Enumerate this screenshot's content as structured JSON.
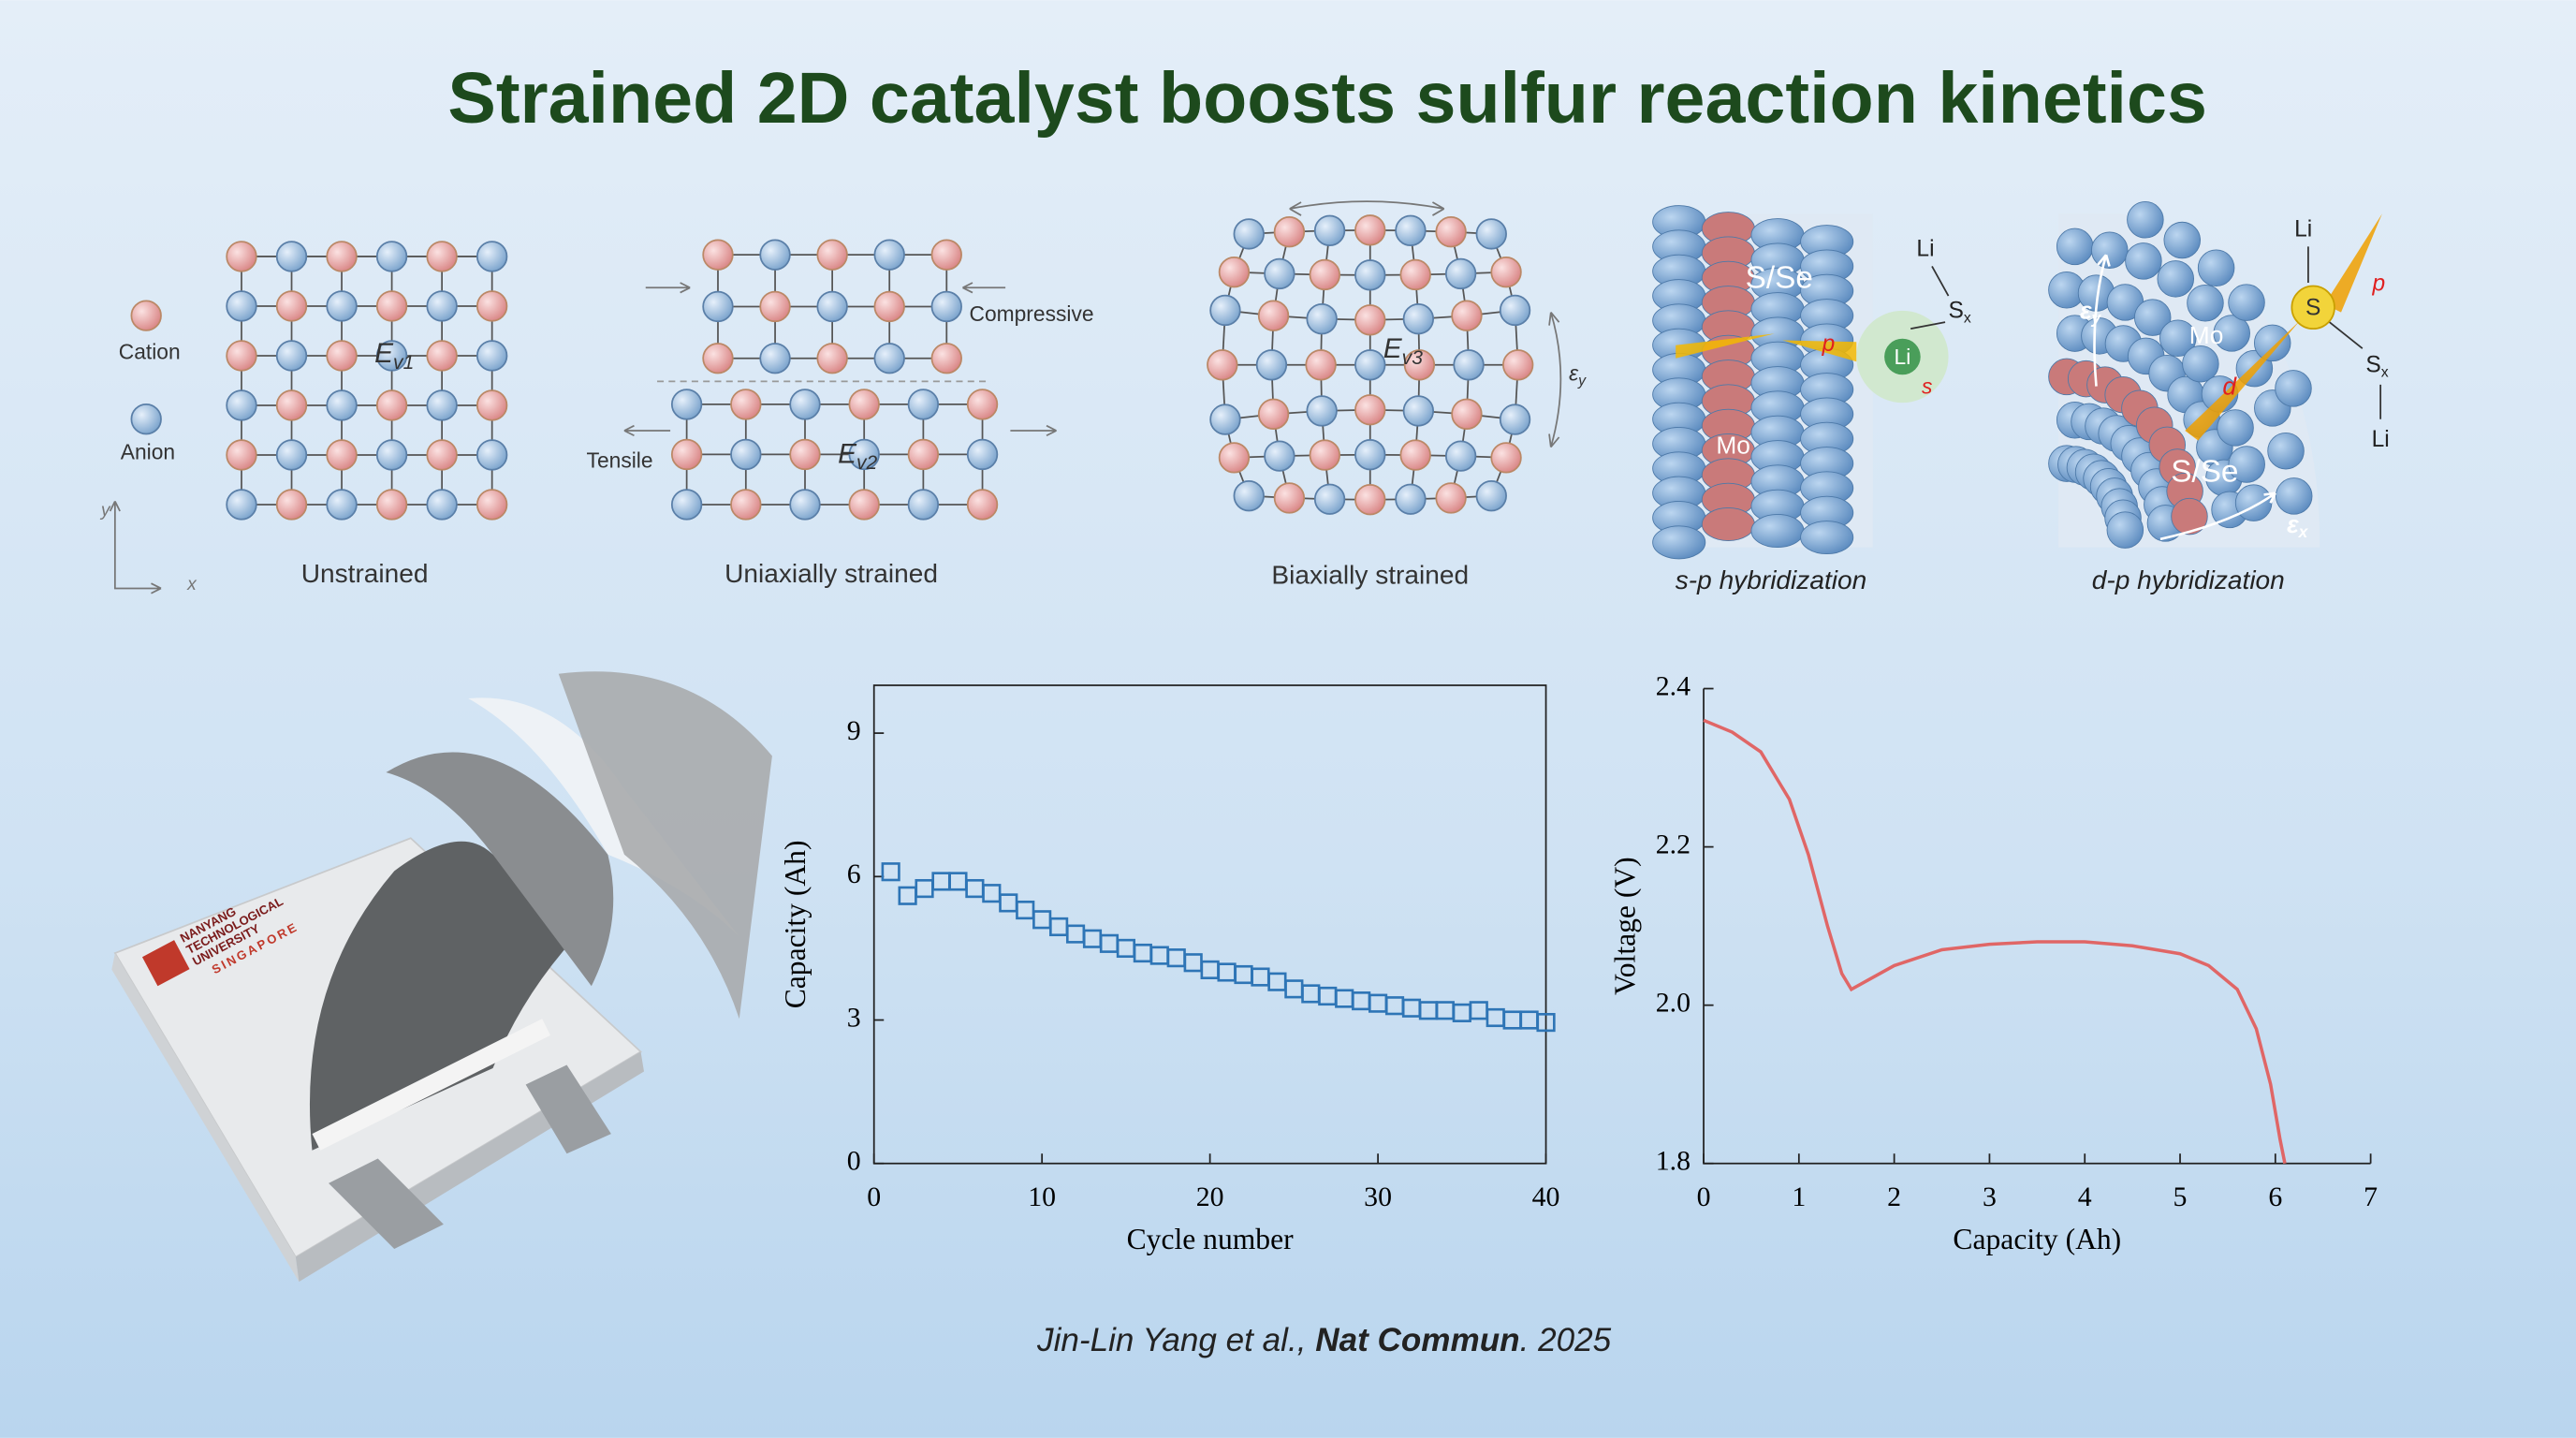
{
  "title": "Strained 2D catalyst boosts sulfur reaction kinetics",
  "panels": {
    "unstrained": {
      "cation": "Cation",
      "anion": "Anion",
      "energy": {
        "symbol": "E",
        "subscript": "v1"
      },
      "axis_y": "y",
      "axis_x": "x",
      "caption": "Unstrained"
    },
    "uniaxial": {
      "compressive": "Compressive",
      "tensile": "Tensile",
      "energy": {
        "symbol": "E",
        "subscript": "v2"
      },
      "caption": "Uniaxially strained"
    },
    "biaxial": {
      "energy": {
        "symbol": "E",
        "subscript": "v3"
      },
      "strain": {
        "symbol": "ε",
        "subscript": "y"
      },
      "caption": "Biaxially strained"
    },
    "sp": {
      "layer": "S/Se",
      "metal": "Mo",
      "li_top": "Li",
      "sx": {
        "symbol": "S",
        "subscript": "x"
      },
      "li_atom": "Li",
      "orbital_p": "p",
      "orbital_s": "s",
      "caption": "s-p hybridization"
    },
    "dp": {
      "metal": "Mo",
      "orbital_d": "d",
      "layer": "S/Se",
      "s_atom": "S",
      "orbital_p": "p",
      "li_top": "Li",
      "sx": {
        "symbol": "S",
        "subscript": "x"
      },
      "li_bottom": "Li",
      "strain_y": {
        "symbol": "ε",
        "subscript": "y"
      },
      "strain_x": {
        "symbol": "ε",
        "subscript": "x"
      },
      "caption": "d-p hybridization"
    }
  },
  "cell_logo": {
    "line1": "NANYANG",
    "line2": "TECHNOLOGICAL",
    "line3": "UNIVERSITY",
    "line4": "SINGAPORE"
  },
  "citation": {
    "authors": "Jin-Lin Yang et al., ",
    "journal": "Nat Commun",
    "year": ". 2025"
  },
  "chart_data": [
    {
      "type": "scatter",
      "xlabel": "Cycle number",
      "ylabel": "Capacity (Ah)",
      "color": "#2e75b6",
      "x": [
        1,
        2,
        3,
        4,
        5,
        6,
        7,
        8,
        9,
        10,
        11,
        12,
        13,
        14,
        15,
        16,
        17,
        18,
        19,
        20,
        21,
        22,
        23,
        24,
        25,
        26,
        27,
        28,
        29,
        30,
        31,
        32,
        33,
        34,
        35,
        36,
        37,
        38,
        39,
        40
      ],
      "values": [
        6.1,
        5.6,
        5.75,
        5.9,
        5.9,
        5.75,
        5.65,
        5.45,
        5.3,
        5.1,
        4.95,
        4.8,
        4.7,
        4.6,
        4.5,
        4.4,
        4.35,
        4.3,
        4.2,
        4.05,
        4.0,
        3.95,
        3.9,
        3.8,
        3.65,
        3.55,
        3.5,
        3.45,
        3.4,
        3.35,
        3.3,
        3.25,
        3.2,
        3.2,
        3.15,
        3.2,
        3.05,
        3.0,
        3.0,
        2.95
      ],
      "xlim": [
        0,
        40
      ],
      "xticks": [
        0,
        10,
        20,
        30,
        40
      ],
      "ylim": [
        0,
        10
      ],
      "yticks": [
        0,
        3,
        6,
        9
      ]
    },
    {
      "type": "line",
      "xlabel": "Capacity (Ah)",
      "ylabel": "Voltage (V)",
      "color": "#e06666",
      "x": [
        0,
        0.3,
        0.6,
        0.9,
        1.1,
        1.3,
        1.45,
        1.55,
        1.7,
        2.0,
        2.5,
        3.0,
        3.5,
        4.0,
        4.5,
        5.0,
        5.3,
        5.6,
        5.8,
        5.95,
        6.05,
        6.1
      ],
      "values": [
        2.36,
        2.345,
        2.32,
        2.26,
        2.19,
        2.1,
        2.04,
        2.02,
        2.03,
        2.05,
        2.07,
        2.077,
        2.08,
        2.08,
        2.075,
        2.065,
        2.05,
        2.02,
        1.97,
        1.9,
        1.83,
        1.8
      ],
      "xlim": [
        0,
        7
      ],
      "xticks": [
        0,
        1,
        2,
        3,
        4,
        5,
        6,
        7
      ],
      "ylim": [
        1.8,
        2.4
      ],
      "yticks": [
        1.8,
        {
          "value": 2,
          "label": "2.0"
        },
        2.2,
        2.4
      ]
    }
  ]
}
